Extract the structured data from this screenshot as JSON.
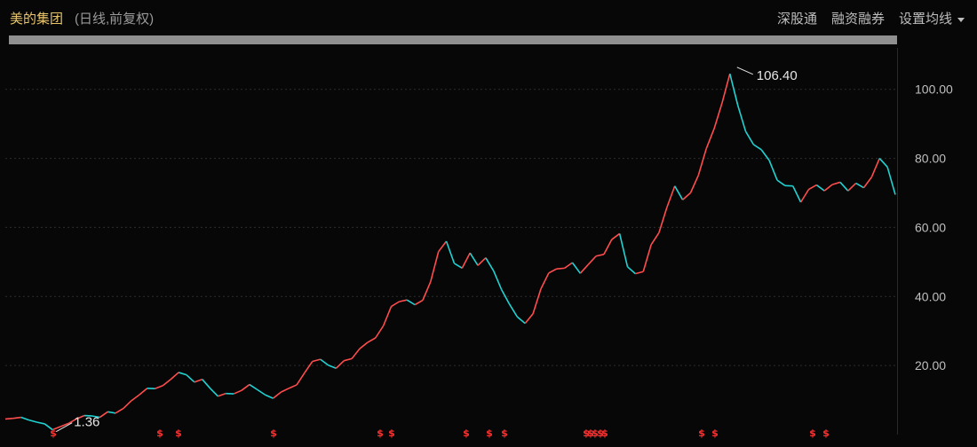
{
  "header": {
    "title": "美的集团",
    "subtitle": "(日线,前复权)",
    "tools": [
      "深股通",
      "融资融券",
      "设置均线"
    ]
  },
  "colors": {
    "up": "#ff4d4d",
    "down": "#1fd3d3",
    "title": "#e8c56a",
    "marker": "#ff3030",
    "grid": "#2e2e2e"
  },
  "chart_data": {
    "type": "line",
    "title": "",
    "xlabel": "",
    "ylabel": "",
    "ylim": [
      0,
      112
    ],
    "yticks": [
      "100.00",
      "80.00",
      "60.00",
      "40.00",
      "20.00"
    ],
    "ytick_values": [
      100,
      80,
      60,
      40,
      20
    ],
    "grid": true,
    "series": [
      {
        "values": [
          4.5,
          4.7,
          5,
          4.2,
          3.6,
          3.1,
          1.4,
          2.3,
          3.2,
          4.5,
          5.5,
          5.4,
          5,
          6.6,
          6.2,
          7.6,
          9.8,
          11.5,
          13.4,
          13.3,
          14.2,
          16,
          18,
          17.3,
          15.2,
          16,
          13.4,
          11.1,
          11.9,
          11.8,
          12.8,
          14.5,
          13,
          11.5,
          10.5,
          12.3,
          13.4,
          14.4,
          17.9,
          21.2,
          21.8,
          20.1,
          19.2,
          21.4,
          22,
          24.9,
          26.7,
          28,
          31.5,
          37.1,
          38.5,
          39,
          37.6,
          38.9,
          44.3,
          53,
          56,
          49.6,
          48.2,
          52.6,
          49,
          51.2,
          47.4,
          42,
          37.8,
          34.1,
          32.2,
          35,
          42.2,
          46.8,
          48,
          48.2,
          49.8,
          46.7,
          49.2,
          51.7,
          52.2,
          56.5,
          58.2,
          48.6,
          46.6,
          47.2,
          55,
          58.5,
          65.8,
          72,
          68,
          70,
          75.1,
          82.8,
          88.6,
          96,
          104.5,
          95.4,
          87.8,
          84,
          82.5,
          79.4,
          73.7,
          72.1,
          72,
          67.3,
          71,
          72.3,
          70.6,
          72.4,
          73.1,
          70.6,
          72.8,
          71.5,
          74.6,
          80,
          77.5,
          69.5
        ]
      }
    ],
    "annotations": [
      {
        "text": "106.40",
        "value": 106.4
      },
      {
        "text": "1.36",
        "value": 1.36
      }
    ],
    "event_marker_glyph": "$",
    "event_markers": [
      "$",
      "$",
      "$",
      "$",
      "$",
      "$",
      "$",
      "$",
      "$",
      "$",
      "$",
      "$",
      "$",
      "$",
      "$",
      "$",
      "$",
      "$"
    ]
  }
}
